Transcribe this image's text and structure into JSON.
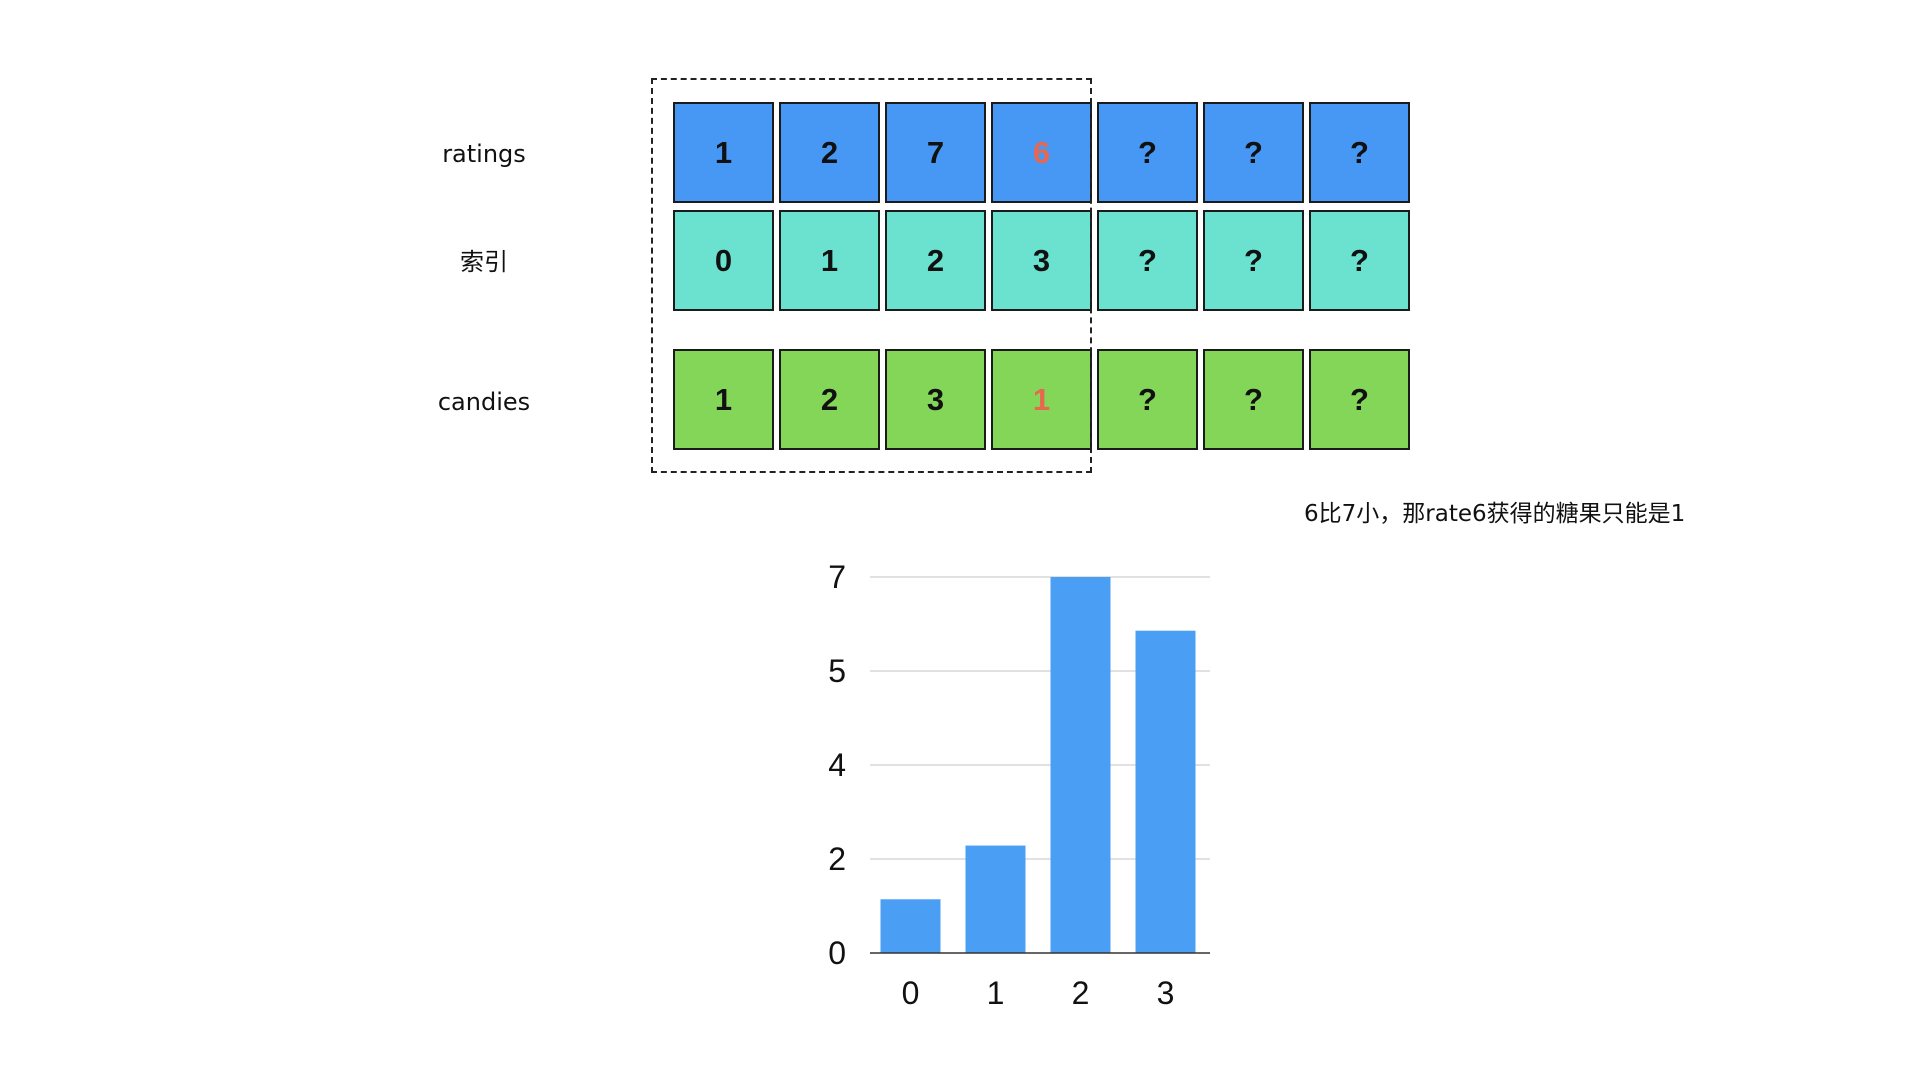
{
  "rows": {
    "ratings": {
      "label": "ratings",
      "cells": [
        "1",
        "2",
        "7",
        "6",
        "?",
        "?",
        "?"
      ]
    },
    "index": {
      "label": "索引",
      "cells": [
        "0",
        "1",
        "2",
        "3",
        "?",
        "?",
        "?"
      ]
    },
    "candies": {
      "label": "candies",
      "cells": [
        "1",
        "2",
        "3",
        "1",
        "?",
        "?",
        "?"
      ]
    }
  },
  "highlight_color": "#e8674f",
  "colors": {
    "ratings_cell": "#4797f4",
    "index_cell": "#6be1cf",
    "candies_cell": "#84d659",
    "bar": "#4a9ff5"
  },
  "note": "6比7小，那rate6获得的糖果只能是1",
  "chart_data": {
    "type": "bar",
    "categories": [
      "0",
      "1",
      "2",
      "3"
    ],
    "values": [
      1,
      2,
      7,
      6
    ],
    "y_tick_labels": [
      "0",
      "2",
      "4",
      "5",
      "7"
    ],
    "ylim": [
      0,
      7
    ],
    "grid": true,
    "title": "",
    "xlabel": "",
    "ylabel": ""
  }
}
